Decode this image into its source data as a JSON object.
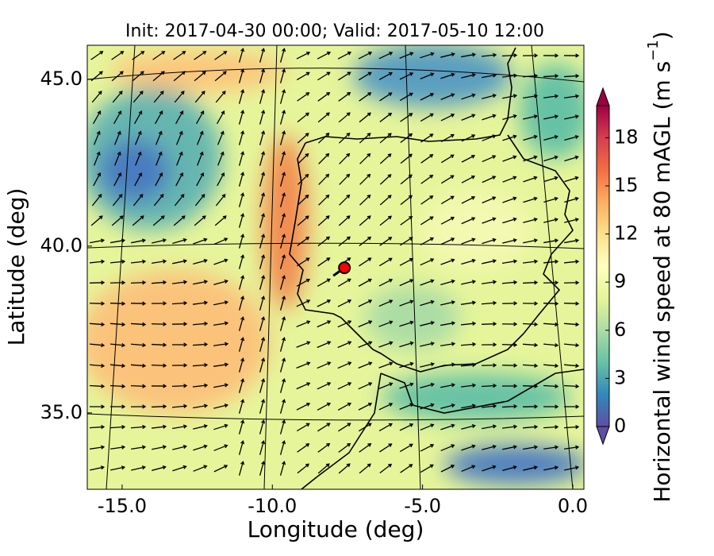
{
  "chart_data": {
    "type": "map",
    "title": "Init: 2017-04-30 00:00; Valid: 2017-05-10 12:00",
    "x_label": "Longitude (deg)",
    "y_label": "Latitude (deg)",
    "xlim": [
      -16.16,
      0.37
    ],
    "ylim": [
      32.71,
      46.02
    ],
    "xticks": [
      {
        "value": -15,
        "label": "-15.0"
      },
      {
        "value": -10,
        "label": "-10.0"
      },
      {
        "value": -5,
        "label": "-5.0"
      },
      {
        "value": 0,
        "label": "0.0"
      }
    ],
    "yticks": [
      {
        "value": 35,
        "label": "35.0"
      },
      {
        "value": 40,
        "label": "40.0"
      },
      {
        "value": 45,
        "label": "45.0"
      }
    ],
    "colorbar_label": "Horizontal wind speed at 80 mAGL (m s",
    "colorbar_label_sup": "−1",
    "colorbar_label_end": ")",
    "clim": [
      0,
      20
    ],
    "colorbar_ticks": [
      0,
      3,
      6,
      9,
      12,
      15,
      18
    ],
    "colormap": [
      "#5e4fa2",
      "#3288bd",
      "#66c2a5",
      "#abdda4",
      "#e6f598",
      "#ffffbf",
      "#fee08b",
      "#fdae61",
      "#f46d43",
      "#d53e4f",
      "#9e0142"
    ],
    "marker": {
      "lon": -7.6,
      "lat": 39.35,
      "color": "#ff0000"
    }
  }
}
